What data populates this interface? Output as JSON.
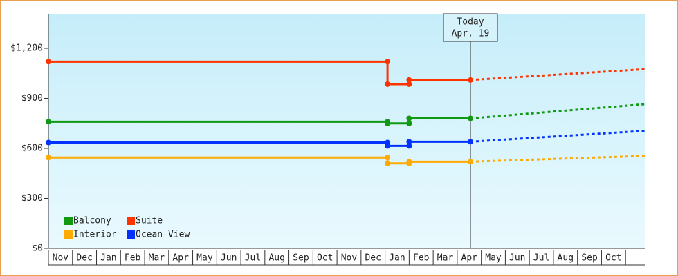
{
  "chart_data": {
    "type": "line",
    "categories": [
      "Nov",
      "Dec",
      "Jan",
      "Feb",
      "Mar",
      "Apr",
      "May",
      "Jun",
      "Jul",
      "Aug",
      "Sep",
      "Oct",
      "Nov",
      "Dec",
      "Jan",
      "Feb",
      "Mar",
      "Apr",
      "May",
      "Jun",
      "Jul",
      "Aug",
      "Sep",
      "Oct"
    ],
    "xlim": [
      0,
      24.8
    ],
    "x": [
      0,
      14.1,
      14.1,
      15.0,
      15.0,
      17.55
    ],
    "projected_x": [
      17.55,
      24.8
    ],
    "ylim": [
      0,
      1400
    ],
    "yticks": [
      {
        "value": 0,
        "label": "$0"
      },
      {
        "value": 300,
        "label": "$300"
      },
      {
        "value": 600,
        "label": "$600"
      },
      {
        "value": 900,
        "label": "$900"
      },
      {
        "value": 1200,
        "label": "$1,200"
      }
    ],
    "today": {
      "label": "Today",
      "date": "Apr. 19",
      "x": 17.55
    },
    "series": [
      {
        "name": "Balcony",
        "color": "#119911",
        "values": [
          760,
          760,
          750,
          750,
          780,
          780
        ],
        "projected_values": [
          780,
          865
        ]
      },
      {
        "name": "Suite",
        "color": "#ff3300",
        "values": [
          1120,
          1120,
          985,
          985,
          1010,
          1010
        ],
        "projected_values": [
          1010,
          1075
        ]
      },
      {
        "name": "Interior",
        "color": "#ffaa00",
        "values": [
          545,
          545,
          510,
          510,
          520,
          520
        ],
        "projected_values": [
          520,
          555
        ]
      },
      {
        "name": "Ocean View",
        "color": "#0033ff",
        "values": [
          635,
          635,
          615,
          615,
          640,
          640
        ],
        "projected_values": [
          640,
          705
        ]
      }
    ]
  }
}
